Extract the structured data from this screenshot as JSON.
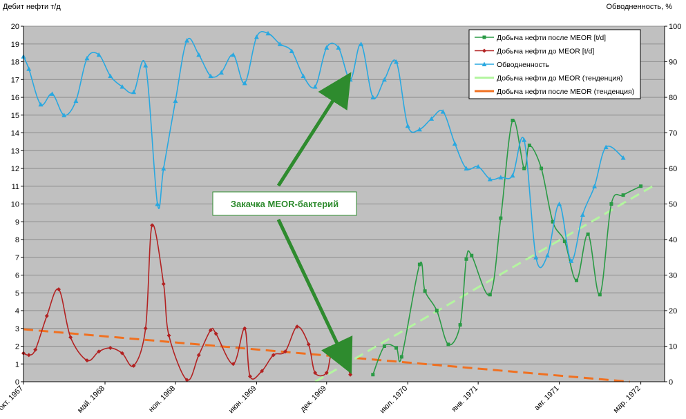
{
  "chart_data": {
    "type": "line",
    "ylabel": "Дебит нефти  т/д",
    "y2label": "Обводненность, %",
    "ylim": [
      0,
      20
    ],
    "y2lim": [
      0,
      100
    ],
    "grid": true,
    "legend_position": "top-right",
    "plot_background": "#c0c0c0",
    "x_tick_labels": [
      {
        "date": "1967-10-01",
        "label": "окт. 1967"
      },
      {
        "date": "1968-05-01",
        "label": "май. 1968"
      },
      {
        "date": "1968-11-01",
        "label": "ноя. 1968"
      },
      {
        "date": "1969-06-01",
        "label": "июн. 1969"
      },
      {
        "date": "1969-12-01",
        "label": "дек. 1969"
      },
      {
        "date": "1970-07-01",
        "label": "июл. 1970"
      },
      {
        "date": "1971-01-01",
        "label": "янв. 1971"
      },
      {
        "date": "1971-08-01",
        "label": "авг. 1971"
      },
      {
        "date": "1972-03-01",
        "label": "мар. 1972"
      }
    ],
    "y_ticks": [
      0,
      1,
      2,
      3,
      4,
      5,
      6,
      7,
      8,
      9,
      10,
      11,
      12,
      13,
      14,
      15,
      16,
      17,
      18,
      19,
      20
    ],
    "y2_ticks": [
      0,
      10,
      20,
      30,
      40,
      50,
      60,
      70,
      80,
      90,
      100
    ],
    "series": [
      {
        "name": "Добыча нефти после MEOR  [t/d]",
        "color": "#2a9a45",
        "marker": "square",
        "axis": "left",
        "points": [
          [
            "1970-04-01",
            0.4
          ],
          [
            "1970-05-01",
            2.0
          ],
          [
            "1970-06-01",
            1.9
          ],
          [
            "1970-06-15",
            1.4
          ],
          [
            "1970-08-01",
            6.6
          ],
          [
            "1970-08-15",
            5.1
          ],
          [
            "1970-09-15",
            4.0
          ],
          [
            "1970-10-15",
            2.1
          ],
          [
            "1970-11-15",
            3.2
          ],
          [
            "1970-12-01",
            6.9
          ],
          [
            "1970-12-15",
            7.1
          ],
          [
            "1971-02-01",
            4.9
          ],
          [
            "1971-03-01",
            9.2
          ],
          [
            "1971-04-01",
            14.7
          ],
          [
            "1971-05-01",
            12.0
          ],
          [
            "1971-05-15",
            13.3
          ],
          [
            "1971-06-15",
            12.0
          ],
          [
            "1971-07-15",
            9.0
          ],
          [
            "1971-08-15",
            7.9
          ],
          [
            "1971-09-15",
            5.7
          ],
          [
            "1971-10-15",
            8.3
          ],
          [
            "1971-11-15",
            4.9
          ],
          [
            "1971-12-15",
            10.0
          ],
          [
            "1972-01-15",
            10.5
          ],
          [
            "1972-03-01",
            11.0
          ]
        ]
      },
      {
        "name": "Добыча нефти до MEOR  [t/d]",
        "color": "#b22222",
        "marker": "diamond",
        "axis": "left",
        "points": [
          [
            "1967-10-01",
            1.6
          ],
          [
            "1967-10-15",
            1.5
          ],
          [
            "1967-11-01",
            1.8
          ],
          [
            "1967-12-01",
            3.7
          ],
          [
            "1968-01-01",
            5.2
          ],
          [
            "1968-02-01",
            2.5
          ],
          [
            "1968-03-15",
            1.2
          ],
          [
            "1968-04-15",
            1.7
          ],
          [
            "1968-05-15",
            1.9
          ],
          [
            "1968-06-15",
            1.6
          ],
          [
            "1968-07-15",
            0.9
          ],
          [
            "1968-08-15",
            3.0
          ],
          [
            "1968-09-01",
            8.8
          ],
          [
            "1968-10-01",
            5.5
          ],
          [
            "1968-10-15",
            2.6
          ],
          [
            "1968-12-01",
            0.1
          ],
          [
            "1969-01-01",
            1.5
          ],
          [
            "1969-02-01",
            2.9
          ],
          [
            "1969-02-15",
            2.7
          ],
          [
            "1969-04-01",
            1.0
          ],
          [
            "1969-05-01",
            3.0
          ],
          [
            "1969-05-15",
            0.3
          ],
          [
            "1969-06-15",
            0.6
          ],
          [
            "1969-07-15",
            1.5
          ],
          [
            "1969-08-15",
            1.7
          ],
          [
            "1969-09-15",
            3.1
          ],
          [
            "1969-10-15",
            2.1
          ],
          [
            "1969-11-01",
            0.5
          ],
          [
            "1969-12-01",
            0.5
          ],
          [
            "1969-12-15",
            1.6
          ],
          [
            "1970-01-15",
            1.2
          ],
          [
            "1970-02-01",
            0.4
          ]
        ]
      },
      {
        "name": "Обводненность",
        "color": "#29a8e0",
        "marker": "triangle",
        "axis": "right",
        "points": [
          [
            "1967-10-01",
            91.5
          ],
          [
            "1967-10-15",
            88.0
          ],
          [
            "1967-11-15",
            78.0
          ],
          [
            "1967-12-15",
            81.0
          ],
          [
            "1968-01-15",
            75.0
          ],
          [
            "1968-02-15",
            79.0
          ],
          [
            "1968-03-15",
            91.0
          ],
          [
            "1968-04-15",
            92.0
          ],
          [
            "1968-05-15",
            86.0
          ],
          [
            "1968-06-15",
            83.0
          ],
          [
            "1968-07-15",
            81.5
          ],
          [
            "1968-08-15",
            89.0
          ],
          [
            "1968-09-15",
            50.0
          ],
          [
            "1968-10-01",
            60.0
          ],
          [
            "1968-11-01",
            79.0
          ],
          [
            "1968-12-01",
            96.0
          ],
          [
            "1969-01-01",
            92.0
          ],
          [
            "1969-02-01",
            86.0
          ],
          [
            "1969-03-01",
            87.0
          ],
          [
            "1969-04-01",
            92.0
          ],
          [
            "1969-05-01",
            84.0
          ],
          [
            "1969-06-01",
            97.0
          ],
          [
            "1969-07-01",
            98.0
          ],
          [
            "1969-08-01",
            95.0
          ],
          [
            "1969-09-01",
            93.0
          ],
          [
            "1969-10-01",
            86.0
          ],
          [
            "1969-11-01",
            83.0
          ],
          [
            "1969-12-01",
            94.0
          ],
          [
            "1970-01-01",
            94.0
          ],
          [
            "1970-02-01",
            85.0
          ],
          [
            "1970-03-01",
            95.0
          ],
          [
            "1970-04-01",
            80.0
          ],
          [
            "1970-05-01",
            85.0
          ],
          [
            "1970-06-01",
            90.0
          ],
          [
            "1970-07-01",
            72.0
          ],
          [
            "1970-08-01",
            71.0
          ],
          [
            "1970-09-01",
            74.0
          ],
          [
            "1970-10-01",
            76.0
          ],
          [
            "1970-11-01",
            67.0
          ],
          [
            "1970-12-01",
            60.0
          ],
          [
            "1971-01-01",
            60.5
          ],
          [
            "1971-02-01",
            57.0
          ],
          [
            "1971-03-01",
            57.5
          ],
          [
            "1971-04-01",
            58.0
          ],
          [
            "1971-05-01",
            68.0
          ],
          [
            "1971-06-01",
            35.0
          ],
          [
            "1971-07-01",
            35.5
          ],
          [
            "1971-08-01",
            50.0
          ],
          [
            "1971-09-01",
            34.0
          ],
          [
            "1971-10-01",
            47.0
          ],
          [
            "1971-11-01",
            55.0
          ],
          [
            "1971-12-01",
            66.0
          ],
          [
            "1972-01-15",
            63.0
          ]
        ]
      },
      {
        "name": "Добыча нефти до MEOR (тенденция)",
        "color": "#b4f5a0",
        "style": "dashed",
        "axis": "left",
        "points": [
          [
            "1969-11-01",
            0.0
          ],
          [
            "1972-04-01",
            11.0
          ]
        ]
      },
      {
        "name": "Добыча нефти после MEOR (тенденция)",
        "color": "#f07020",
        "style": "dashed",
        "axis": "left",
        "points": [
          [
            "1967-10-01",
            2.95
          ],
          [
            "1972-02-01",
            0.0
          ]
        ]
      }
    ],
    "annotation": {
      "text": "Закачка MEOR-бактерий",
      "color": "#2e8b2e",
      "arrow_targets": [
        [
          "1970-01-15",
          17.0
        ],
        [
          "1970-01-20",
          0.9
        ]
      ]
    }
  }
}
